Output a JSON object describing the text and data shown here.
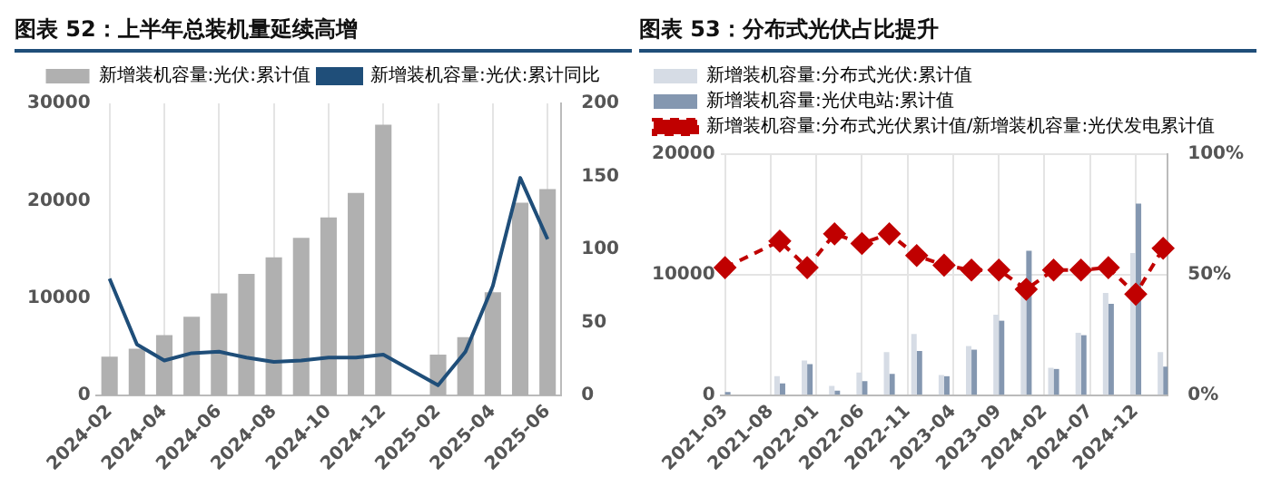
{
  "chart_data": [
    {
      "type": "bar",
      "title": "图表 52：上半年总装机量延续高增",
      "categories": [
        "2024-02",
        null,
        "2024-04",
        null,
        "2024-06",
        null,
        "2024-08",
        null,
        "2024-10",
        null,
        "2024-12",
        null,
        "2025-02",
        null,
        "2025-04",
        null,
        "2025-06"
      ],
      "series": [
        {
          "name": "新增装机容量:光伏:累计值",
          "color": "#b0b0b0",
          "values": [
            4000,
            4800,
            6200,
            8100,
            10500,
            12500,
            14200,
            16200,
            18300,
            20800,
            27800,
            null,
            4200,
            6000,
            10600,
            19800,
            21200
          ]
        },
        {
          "name": "新增装机容量:光伏:累计同比",
          "type": "line",
          "axis": "y2",
          "color": "#1f4e79",
          "values": [
            80,
            35,
            24,
            29,
            30,
            26,
            23,
            24,
            26,
            26,
            28,
            null,
            7,
            30,
            75,
            149,
            107
          ]
        }
      ],
      "ylim": [
        0,
        30000
      ],
      "yticks": [
        0,
        10000,
        20000,
        30000
      ],
      "y2lim": [
        0,
        200
      ],
      "y2ticks": [
        0,
        50,
        100,
        150,
        200
      ],
      "grid": "x",
      "legend": "top"
    },
    {
      "type": "bar",
      "title": "图表 53：分布式光伏占比提升",
      "categories": [
        "2021-03",
        null,
        null,
        null,
        null,
        "2021-08",
        null,
        null,
        null,
        null,
        "2022-01",
        null,
        null,
        null,
        null,
        "2022-06",
        null,
        null,
        null,
        null,
        "2022-11",
        null,
        null,
        null,
        null,
        "2023-04",
        null,
        null,
        null,
        null,
        "2023-09",
        null,
        null,
        null,
        null,
        "2024-02",
        null,
        null,
        null,
        null,
        "2024-07",
        null,
        null,
        null,
        null,
        "2024-12",
        null,
        null,
        null
      ],
      "series": [
        {
          "name": "新增装机容量:分布式光伏:累计值",
          "color": "#d6dce5",
          "values": [
            null,
            null,
            null,
            null,
            null,
            null,
            1600,
            null,
            null,
            2900,
            null,
            null,
            800,
            null,
            null,
            1900,
            null,
            null,
            3600,
            null,
            null,
            5100,
            null,
            null,
            1700,
            null,
            null,
            4100,
            null,
            null,
            6700,
            null,
            null,
            9400,
            null,
            null,
            2300,
            null,
            null,
            5200,
            null,
            null,
            8500,
            null,
            null,
            11800,
            null,
            null,
            3600
          ]
        },
        {
          "name": "新增装机容量:光伏电站:累计值",
          "color": "#8497b0",
          "values": [
            300,
            null,
            null,
            null,
            null,
            null,
            1000,
            null,
            null,
            2600,
            null,
            null,
            400,
            null,
            null,
            1200,
            null,
            null,
            1800,
            null,
            null,
            3700,
            null,
            null,
            1600,
            null,
            null,
            3800,
            null,
            null,
            6200,
            null,
            null,
            12000,
            null,
            null,
            2200,
            null,
            null,
            5000,
            null,
            null,
            7600,
            null,
            null,
            15900,
            null,
            null,
            2400
          ]
        },
        {
          "name": "新增装机容量:分布式光伏累计值/新增装机容量:光伏发电累计值",
          "type": "line",
          "axis": "y2",
          "color": "#c00000",
          "marker": "diamond",
          "line_style": "dashed",
          "values": [
            53,
            null,
            null,
            null,
            null,
            null,
            64,
            null,
            null,
            53,
            null,
            null,
            67,
            null,
            null,
            63,
            null,
            null,
            67,
            null,
            null,
            58,
            null,
            null,
            54,
            null,
            null,
            52,
            null,
            null,
            52,
            null,
            null,
            44,
            null,
            null,
            52,
            null,
            null,
            52,
            null,
            null,
            53,
            null,
            null,
            42,
            null,
            null,
            61
          ]
        }
      ],
      "ylim": [
        0,
        20000
      ],
      "yticks": [
        0,
        10000,
        20000
      ],
      "y2lim": [
        0,
        100
      ],
      "y2ticks": [
        {
          "value": 0,
          "label": "0%"
        },
        {
          "value": 50,
          "label": "50%"
        },
        {
          "value": 100,
          "label": "100%"
        }
      ],
      "grid": true,
      "legend": "top left"
    }
  ]
}
